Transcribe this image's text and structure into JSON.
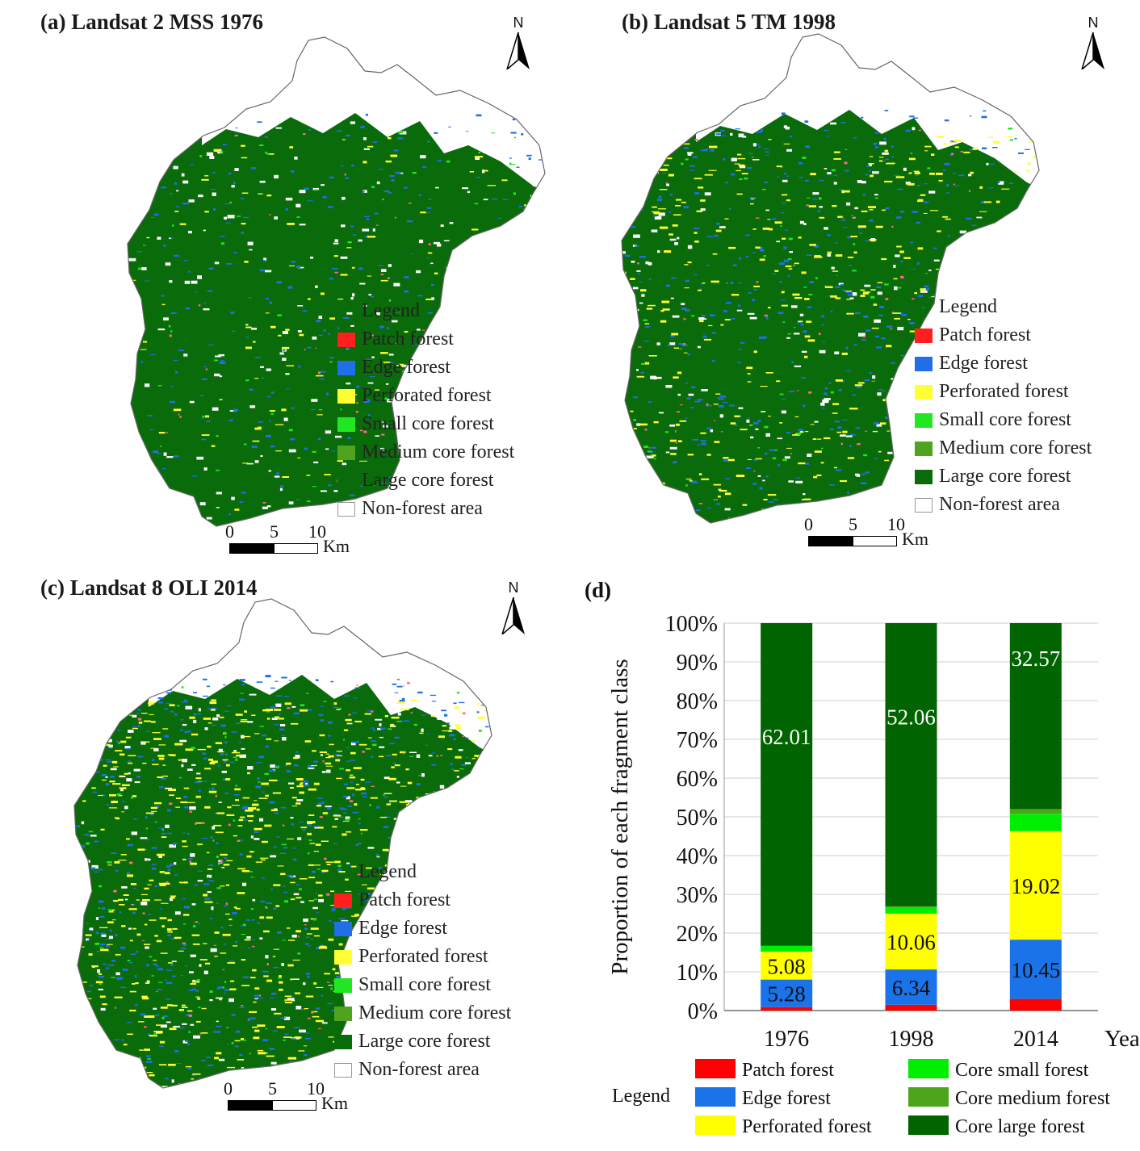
{
  "panels": [
    {
      "id": "a",
      "title": "(a) Landsat 2 MSS 1976",
      "north_label": "N",
      "legend_title": "Legend",
      "scale_ticks": [
        "0",
        "5",
        "10"
      ],
      "scale_unit": "Km"
    },
    {
      "id": "b",
      "title": "(b) Landsat 5 TM 1998",
      "north_label": "N",
      "legend_title": "Legend",
      "scale_ticks": [
        "0",
        "5",
        "10"
      ],
      "scale_unit": "Km"
    },
    {
      "id": "c",
      "title": "(c) Landsat 8 OLI 2014",
      "north_label": "N",
      "legend_title": "Legend",
      "scale_ticks": [
        "0",
        "5",
        "10"
      ],
      "scale_unit": "Km"
    }
  ],
  "map_legend_items": [
    {
      "label": "Patch forest",
      "color": "#ff1f1f"
    },
    {
      "label": "Edge forest",
      "color": "#1f6fe8"
    },
    {
      "label": "Perforated forest",
      "color": "#ffff33"
    },
    {
      "label": "Small core forest",
      "color": "#22e622"
    },
    {
      "label": "Medium core forest",
      "color": "#4fa31e"
    },
    {
      "label": "Large core forest",
      "color": "#0a6b0a"
    },
    {
      "label": "Non-forest area",
      "color": "#ffffff"
    }
  ],
  "chart_panel_label": "(d)",
  "chart_data": {
    "type": "bar",
    "stacked": true,
    "categories": [
      "1976",
      "1998",
      "2014"
    ],
    "ylabel": "Proportion of each fragment class",
    "xlabel": "Years",
    "ylim": [
      0,
      100
    ],
    "yticks": [
      "0%",
      "10%",
      "20%",
      "30%",
      "40%",
      "50%",
      "60%",
      "70%",
      "80%",
      "90%",
      "100%"
    ],
    "grid": true,
    "legend_title": "Legend",
    "legend_position": "bottom",
    "series": [
      {
        "name": "Patch forest",
        "color": "#ff0000",
        "values": [
          0.9,
          1.5,
          3.0
        ],
        "labels": [
          "",
          "",
          ""
        ]
      },
      {
        "name": "Edge forest",
        "color": "#1a73e8",
        "values": [
          7.1,
          9.1,
          15.3
        ],
        "labels": [
          "5.28",
          "6.34",
          "10.45"
        ]
      },
      {
        "name": "Perforated forest",
        "color": "#ffff00",
        "values": [
          7.2,
          14.4,
          28.0
        ],
        "labels": [
          "5.08",
          "10.06",
          "19.02"
        ]
      },
      {
        "name": "Core small forest",
        "color": "#00ee00",
        "values": [
          1.5,
          1.5,
          4.5
        ],
        "labels": [
          "",
          "",
          ""
        ]
      },
      {
        "name": "Core medium forest",
        "color": "#4ca51c",
        "values": [
          0.0,
          0.4,
          1.2
        ],
        "labels": [
          "",
          "",
          ""
        ]
      },
      {
        "name": "Core large forest",
        "color": "#006400",
        "values": [
          83.3,
          73.1,
          48.0
        ],
        "labels": [
          "62.01",
          "52.06",
          "32.57"
        ]
      }
    ]
  }
}
